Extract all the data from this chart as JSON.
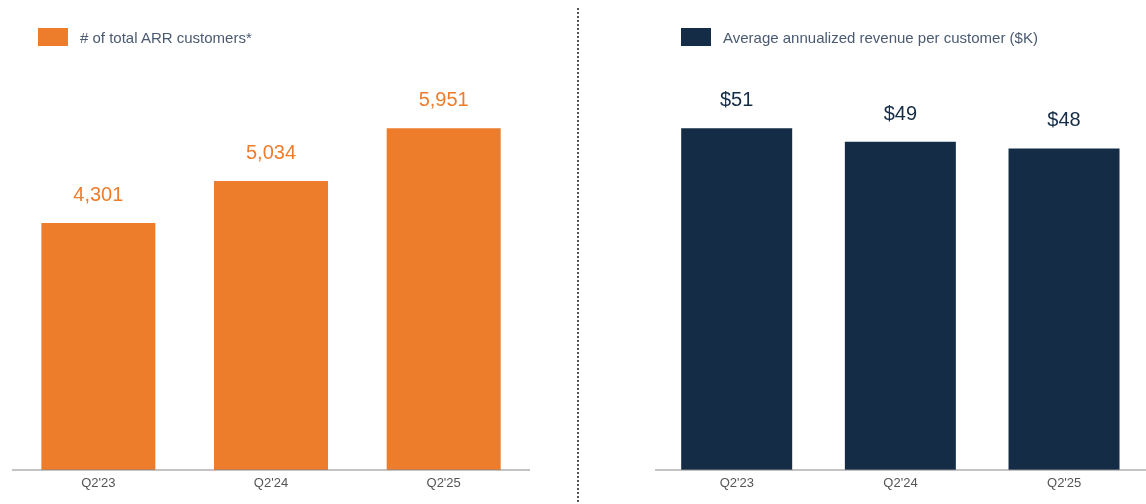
{
  "chart_data": [
    {
      "type": "bar",
      "categories": [
        "Q2'23",
        "Q2'24",
        "Q2'25"
      ],
      "legend": "top left",
      "series": [
        {
          "name": "# of total ARR customers*",
          "color": "#ee7d2b",
          "values": [
            4301,
            5034,
            5951
          ],
          "value_labels": [
            "4,301",
            "5,034",
            "5,951"
          ]
        }
      ]
    },
    {
      "type": "bar",
      "categories": [
        "Q2'23",
        "Q2'24",
        "Q2'25"
      ],
      "legend": "top left",
      "series": [
        {
          "name": "Average annualized revenue per customer ($K)",
          "color": "#152c47",
          "values": [
            51,
            49,
            48
          ],
          "value_labels": [
            "$51",
            "$49",
            "$48"
          ]
        }
      ]
    }
  ]
}
